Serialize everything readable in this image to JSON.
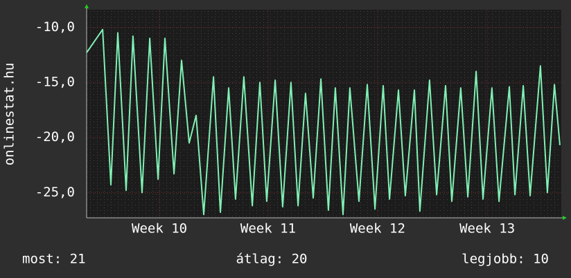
{
  "chart_data": {
    "type": "line",
    "ylabel": "onlinestat.hu",
    "x": [
      0,
      1.02,
      1.55,
      1.99,
      2.52,
      2.96,
      3.54,
      4.03,
      4.56,
      5.0,
      5.58,
      6.06,
      6.55,
      6.99,
      7.48,
      8.1,
      8.54,
      9.07,
      9.51,
      10.04,
      10.58,
      11.06,
      11.5,
      12.04,
      12.52,
      13.05,
      13.5,
      13.98,
      14.47,
      14.96,
      15.44,
      15.88,
      16.37,
      16.81,
      17.39,
      17.92,
      18.41,
      18.94,
      19.34,
      19.91,
      20.35,
      20.93,
      21.28,
      21.9,
      22.35,
      22.92,
      23.32,
      23.89,
      24.34,
      24.87,
      25.31,
      25.88,
      26.33,
      26.99,
      27.35,
      27.88,
      28.32,
      28.98,
      29.42,
      29.87,
      30.22
    ],
    "values": [
      -12.3,
      -10.2,
      -24.3,
      -10.5,
      -24.8,
      -10.8,
      -25.0,
      -11.0,
      -23.8,
      -11.0,
      -23.3,
      -13.0,
      -20.5,
      -18.0,
      -27.0,
      -14.5,
      -26.8,
      -15.5,
      -25.6,
      -14.5,
      -26.2,
      -15.0,
      -25.8,
      -14.8,
      -26.3,
      -15.0,
      -26.2,
      -16.0,
      -25.5,
      -14.7,
      -26.6,
      -15.5,
      -27.0,
      -15.5,
      -25.8,
      -15.2,
      -26.5,
      -15.3,
      -25.6,
      -15.7,
      -25.3,
      -15.7,
      -26.7,
      -14.8,
      -25.2,
      -15.3,
      -25.8,
      -15.5,
      -25.4,
      -14.0,
      -25.6,
      -15.5,
      -25.8,
      -15.4,
      -25.2,
      -15.3,
      -25.3,
      -13.5,
      -25.0,
      -15.2,
      -20.7
    ],
    "color": "#80f0b4",
    "xlim": [
      0,
      30.31
    ],
    "xticks": [
      {
        "value": 4.65,
        "label": "Week 10"
      },
      {
        "value": 11.59,
        "label": "Week 11"
      },
      {
        "value": 18.58,
        "label": "Week 12"
      },
      {
        "value": 25.58,
        "label": "Week 13"
      }
    ],
    "ylim": [
      -27.3,
      -8.4
    ],
    "yticks": [
      {
        "value": -10,
        "label": "-10,0"
      },
      {
        "value": -15,
        "label": "-15,0"
      },
      {
        "value": -20,
        "label": "-20,0"
      },
      {
        "value": -25,
        "label": "-25,0"
      }
    ],
    "grid": true,
    "footer": [
      "most: 21",
      "átlag: 20",
      "legjobb: 10"
    ]
  }
}
